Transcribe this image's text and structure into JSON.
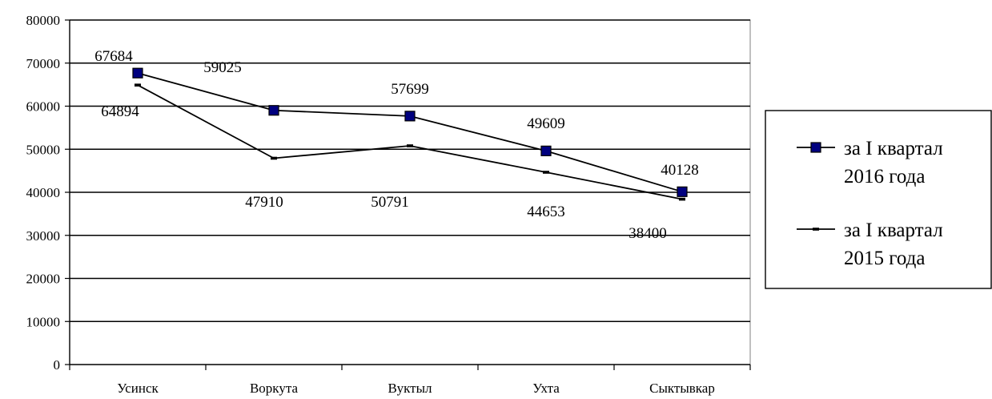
{
  "chart_data": {
    "type": "line",
    "categories": [
      "Усинск",
      "Воркута",
      "Вуктыл",
      "Ухта",
      "Сыктывкар"
    ],
    "series": [
      {
        "name_lines": [
          "за I квартал",
          "2016 года"
        ],
        "values": [
          67684,
          59025,
          57699,
          49609,
          40128
        ],
        "marker": "square",
        "color": "#000000",
        "marker_fill": "#00007f"
      },
      {
        "name_lines": [
          "за I квартал",
          "2015 года"
        ],
        "values": [
          64894,
          47910,
          50791,
          44653,
          38400
        ],
        "marker": "dash",
        "color": "#000000"
      }
    ],
    "ylim": [
      0,
      80000
    ],
    "yticks": [
      0,
      10000,
      20000,
      30000,
      40000,
      50000,
      60000,
      70000,
      80000
    ],
    "grid": true,
    "legend_position": "right"
  }
}
